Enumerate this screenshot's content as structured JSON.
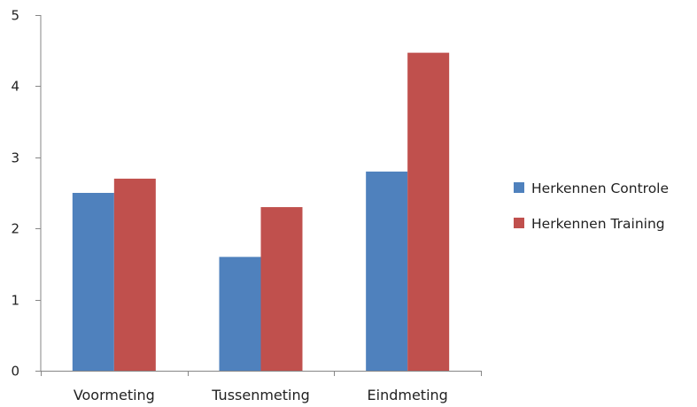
{
  "chart_data": {
    "type": "bar",
    "categories": [
      "Voormeting",
      "Tussenmeting",
      "Eindmeting"
    ],
    "series": [
      {
        "name": "Herkennen Controle",
        "values": [
          2.5,
          1.6,
          2.8
        ],
        "color": "#4F81BD"
      },
      {
        "name": "Herkennen Training",
        "values": [
          2.7,
          2.3,
          4.47
        ],
        "color": "#C0504D"
      }
    ],
    "title": "",
    "xlabel": "",
    "ylabel": "",
    "ylim": [
      0,
      5
    ],
    "yticks": [
      "0",
      "1",
      "2",
      "3",
      "4",
      "5"
    ],
    "grid": false,
    "legend_position": "right"
  }
}
